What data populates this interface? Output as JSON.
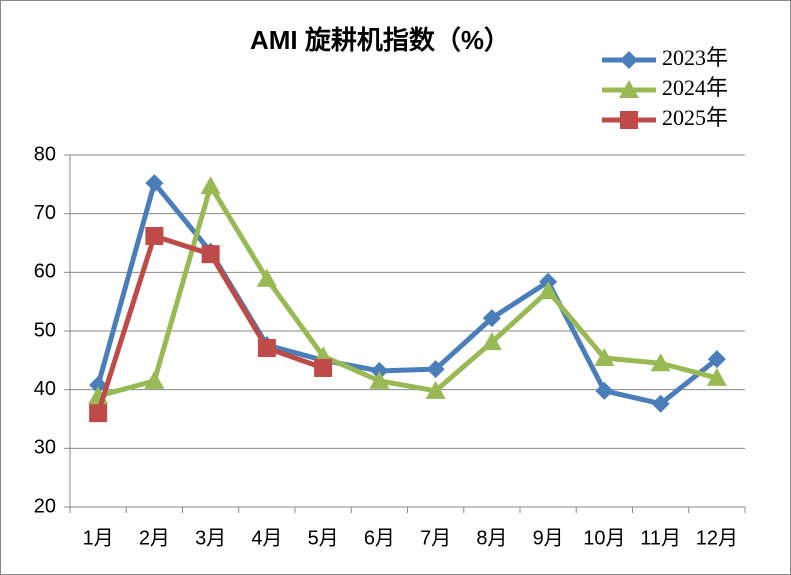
{
  "chart_data": {
    "type": "line",
    "title": "AMI 旋耕机指数（%）",
    "categories": [
      "1月",
      "2月",
      "3月",
      "4月",
      "5月",
      "6月",
      "7月",
      "8月",
      "9月",
      "10月",
      "11月",
      "12月"
    ],
    "series": [
      {
        "name": "2023年",
        "color": "#4a7ebb",
        "marker": "diamond",
        "values": [
          40.8,
          75.2,
          63.5,
          47.6,
          45.0,
          43.2,
          43.5,
          52.2,
          58.4,
          39.8,
          37.6,
          45.2
        ]
      },
      {
        "name": "2024年",
        "color": "#98b954",
        "marker": "triangle",
        "values": [
          38.9,
          41.5,
          74.7,
          58.9,
          45.7,
          41.5,
          39.8,
          48.1,
          56.8,
          45.4,
          44.5,
          42.0
        ]
      },
      {
        "name": "2025年",
        "color": "#be4b48",
        "marker": "square",
        "values": [
          36.0,
          66.2,
          63.1,
          47.1,
          43.7,
          null,
          null,
          null,
          null,
          null,
          null,
          null
        ]
      }
    ],
    "ylim": [
      20,
      80
    ],
    "yticks": [
      20,
      30,
      40,
      50,
      60,
      70,
      80
    ],
    "grid": true,
    "legend": "top-right"
  }
}
